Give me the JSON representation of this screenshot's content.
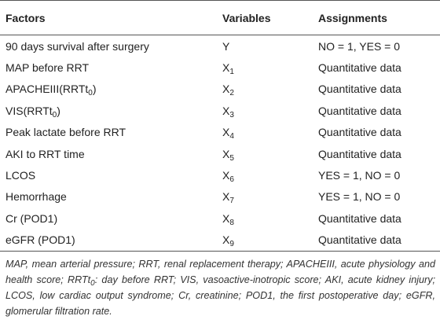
{
  "table": {
    "header": [
      "Factors",
      "Variables",
      "Assignments"
    ],
    "rows": [
      [
        [
          "90 days survival after surgery"
        ],
        [
          "Y"
        ],
        [
          "NO = 1, YES = 0"
        ]
      ],
      [
        [
          "MAP before RRT"
        ],
        [
          "X",
          "1"
        ],
        [
          "Quantitative data"
        ]
      ],
      [
        [
          "APACHEIII(RRTt",
          "0",
          ")"
        ],
        [
          "X",
          "2"
        ],
        [
          "Quantitative data"
        ]
      ],
      [
        [
          "VIS(RRTt",
          "0",
          ")"
        ],
        [
          "X",
          "3"
        ],
        [
          "Quantitative data"
        ]
      ],
      [
        [
          "Peak lactate before RRT"
        ],
        [
          "X",
          "4"
        ],
        [
          "Quantitative data"
        ]
      ],
      [
        [
          "AKI to RRT time"
        ],
        [
          "X",
          "5"
        ],
        [
          "Quantitative data"
        ]
      ],
      [
        [
          "LCOS"
        ],
        [
          "X",
          "6"
        ],
        [
          "YES = 1, NO = 0"
        ]
      ],
      [
        [
          "Hemorrhage"
        ],
        [
          "X",
          "7"
        ],
        [
          "YES = 1, NO = 0"
        ]
      ],
      [
        [
          "Cr (POD1)"
        ],
        [
          "X",
          "8"
        ],
        [
          "Quantitative data"
        ]
      ],
      [
        [
          "eGFR (POD1)"
        ],
        [
          "X",
          "9"
        ],
        [
          "Quantitative data"
        ]
      ]
    ]
  },
  "footnote": [
    "MAP, mean arterial pressure; RRT, renal replacement therapy; APACHEIII, acute physiology and health score; RRTt",
    "0",
    ": day before RRT; VIS, vasoactive-inotropic score; AKI, acute kidney injury; LCOS, low cardiac output syndrome; Cr, creatinine; POD1, the first postoperative day; eGFR, glomerular filtration rate."
  ]
}
